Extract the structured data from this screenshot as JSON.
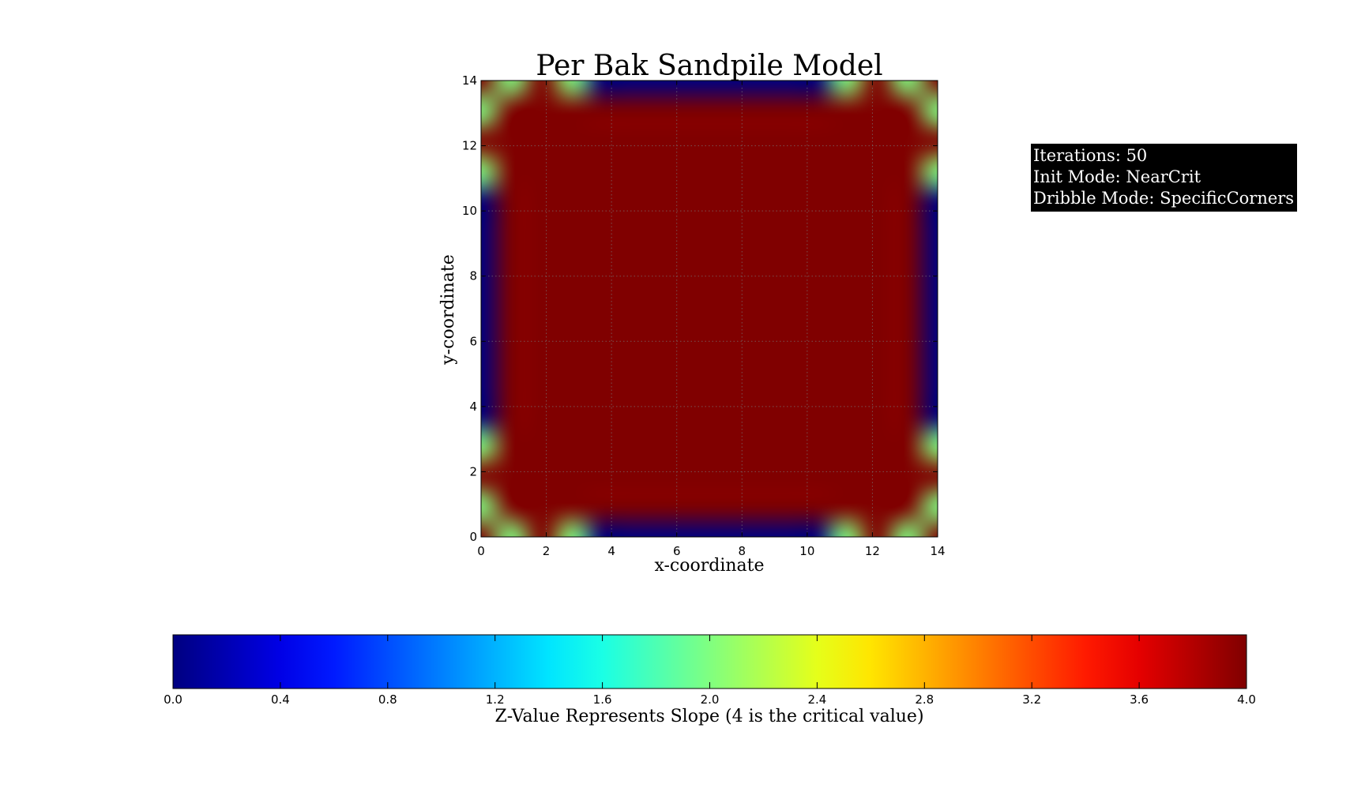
{
  "chart_data": {
    "type": "heatmap",
    "title": "Per Bak Sandpile Model",
    "xlabel": "x-coordinate",
    "ylabel": "y-coordinate",
    "xlim": [
      0,
      14
    ],
    "ylim": [
      0,
      14
    ],
    "x_ticks": [
      "0",
      "2",
      "4",
      "6",
      "8",
      "10",
      "12",
      "14"
    ],
    "y_ticks": [
      "0",
      "2",
      "4",
      "6",
      "8",
      "10",
      "12",
      "14"
    ],
    "grid": true,
    "interpolation": "bicubic",
    "colormap": "jet",
    "grid_values": [
      [
        4,
        2,
        4,
        2,
        0,
        0,
        0,
        0,
        0,
        0,
        0,
        0,
        2,
        4,
        2,
        4
      ],
      [
        2,
        4,
        4,
        4,
        4,
        4,
        4,
        4,
        4,
        4,
        4,
        4,
        4,
        4,
        4,
        2
      ],
      [
        4,
        4,
        4,
        4,
        4,
        4,
        4,
        4,
        4,
        4,
        4,
        4,
        4,
        4,
        4,
        4
      ],
      [
        2,
        4,
        4,
        4,
        4,
        4,
        4,
        4,
        4,
        4,
        4,
        4,
        4,
        4,
        4,
        2
      ],
      [
        0,
        4,
        4,
        4,
        4,
        4,
        4,
        4,
        4,
        4,
        4,
        4,
        4,
        4,
        4,
        0
      ],
      [
        0,
        4,
        4,
        4,
        4,
        4,
        4,
        4,
        4,
        4,
        4,
        4,
        4,
        4,
        4,
        0
      ],
      [
        0,
        4,
        4,
        4,
        4,
        4,
        4,
        4,
        4,
        4,
        4,
        4,
        4,
        4,
        4,
        0
      ],
      [
        0,
        4,
        4,
        4,
        4,
        4,
        4,
        4,
        4,
        4,
        4,
        4,
        4,
        4,
        4,
        0
      ],
      [
        0,
        4,
        4,
        4,
        4,
        4,
        4,
        4,
        4,
        4,
        4,
        4,
        4,
        4,
        4,
        0
      ],
      [
        0,
        4,
        4,
        4,
        4,
        4,
        4,
        4,
        4,
        4,
        4,
        4,
        4,
        4,
        4,
        0
      ],
      [
        0,
        4,
        4,
        4,
        4,
        4,
        4,
        4,
        4,
        4,
        4,
        4,
        4,
        4,
        4,
        0
      ],
      [
        0,
        4,
        4,
        4,
        4,
        4,
        4,
        4,
        4,
        4,
        4,
        4,
        4,
        4,
        4,
        0
      ],
      [
        2,
        4,
        4,
        4,
        4,
        4,
        4,
        4,
        4,
        4,
        4,
        4,
        4,
        4,
        4,
        2
      ],
      [
        4,
        4,
        4,
        4,
        4,
        4,
        4,
        4,
        4,
        4,
        4,
        4,
        4,
        4,
        4,
        4
      ],
      [
        2,
        4,
        4,
        4,
        4,
        4,
        4,
        4,
        4,
        4,
        4,
        4,
        4,
        4,
        4,
        2
      ],
      [
        4,
        2,
        4,
        2,
        0,
        0,
        0,
        0,
        0,
        0,
        0,
        0,
        2,
        4,
        2,
        4
      ]
    ],
    "colorbar": {
      "label": "Z-Value Represents Slope (4 is the critical value)",
      "range": [
        0,
        4
      ],
      "ticks": [
        "0.0",
        "0.4",
        "0.8",
        "1.2",
        "1.6",
        "2.0",
        "2.4",
        "2.8",
        "3.2",
        "3.6",
        "4.0"
      ]
    },
    "annotations": [
      "Iterations: 50",
      "Init Mode: NearCrit",
      "Dribble Mode: SpecificCorners"
    ]
  }
}
